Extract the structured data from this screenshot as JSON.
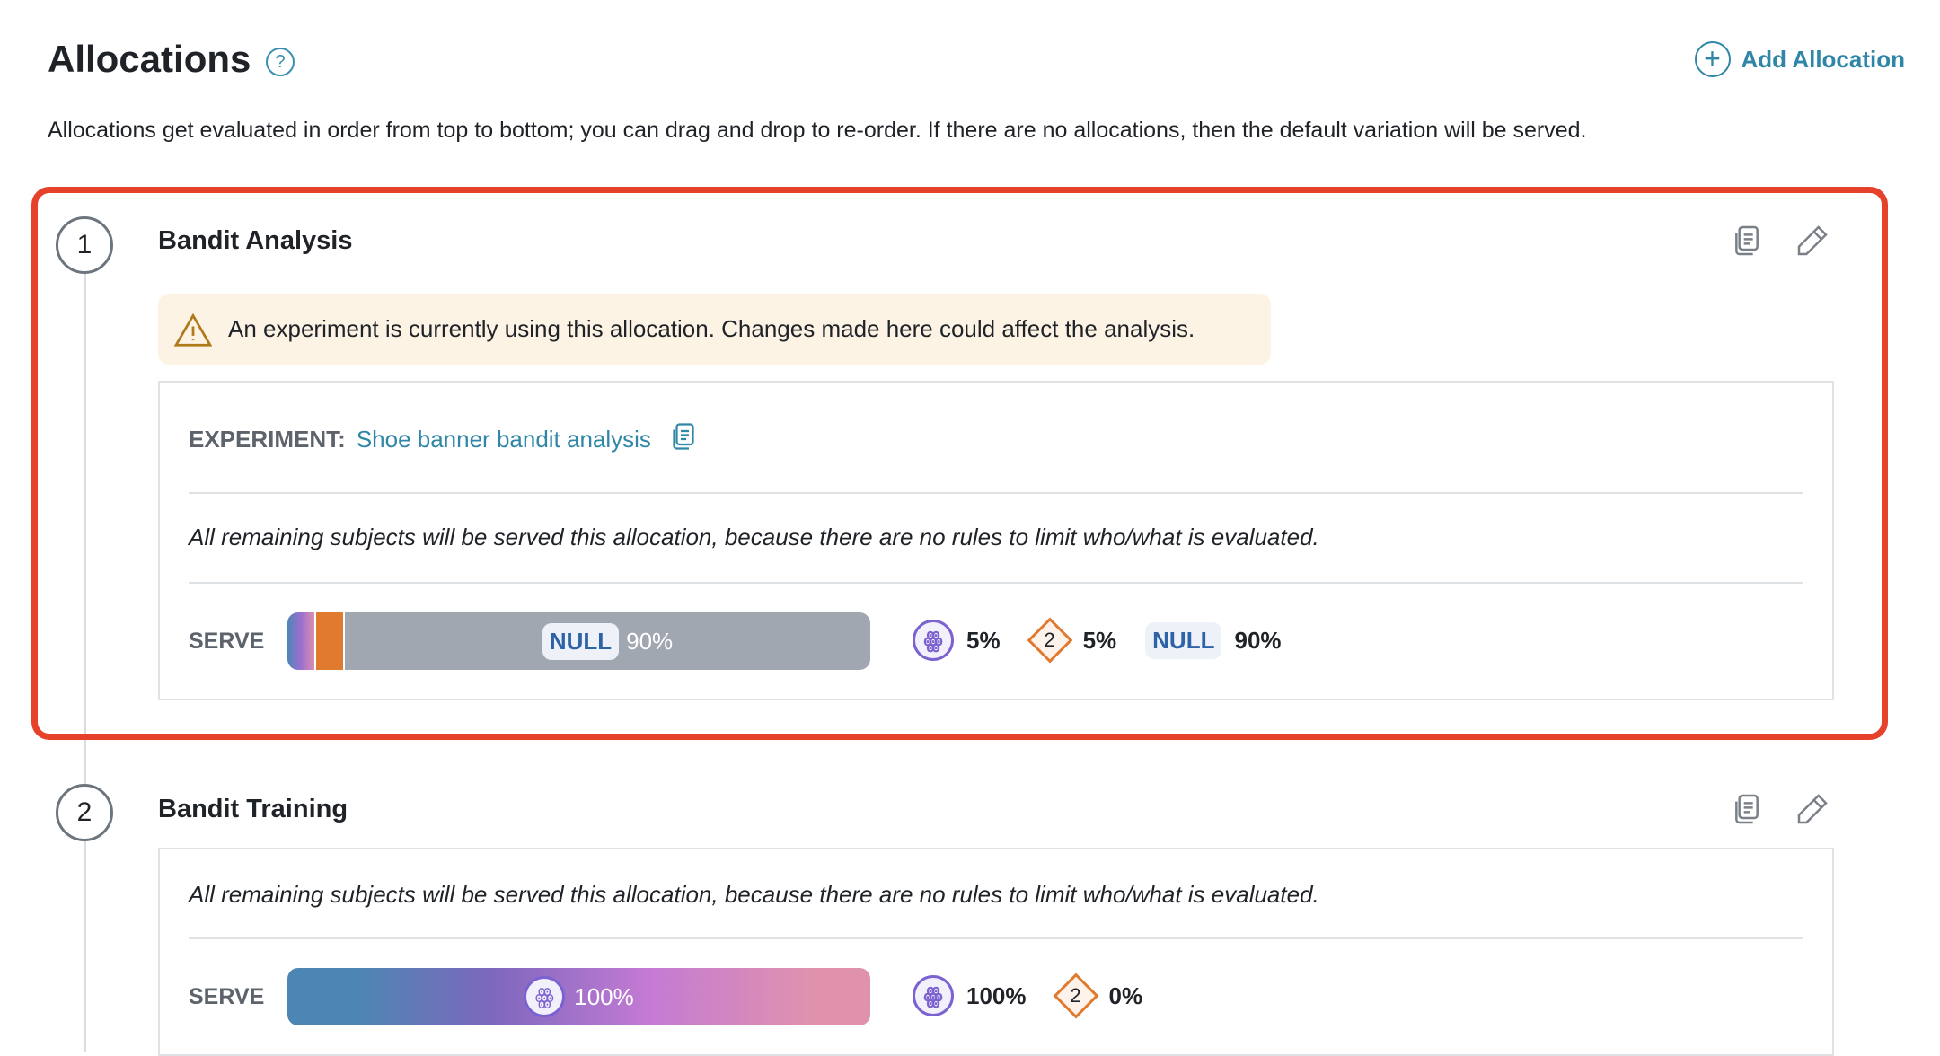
{
  "header": {
    "title": "Allocations",
    "help_icon": "question-circle-icon",
    "add_label": "Add Allocation",
    "description": "Allocations get evaluated in order from top to bottom; you can drag and drop to re-order. If there are no allocations, then the default variation will be served."
  },
  "colors": {
    "highlight": "#e5412b",
    "accent": "#2f86a6",
    "variation_2": "#e07a2f",
    "null_bar": "#a0a7b0"
  },
  "allocations": [
    {
      "index": "1",
      "title": "Bandit Analysis",
      "warning": "An experiment is currently using this allocation. Changes made here could affect the analysis.",
      "experiment_label": "EXPERIMENT:",
      "experiment_name": "Shoe banner bandit analysis",
      "rule_text": "All remaining subjects will be served this allocation, because there are no rules to limit who/what is evaluated.",
      "serve_label": "SERVE",
      "bar_label": "NULL",
      "bar_pct": "90%",
      "split": [
        {
          "variant": "octopus",
          "pct": "5%"
        },
        {
          "variant": "2",
          "pct": "5%"
        },
        {
          "variant": "NULL",
          "pct": "90%"
        }
      ]
    },
    {
      "index": "2",
      "title": "Bandit Training",
      "rule_text": "All remaining subjects will be served this allocation, because there are no rules to limit who/what is evaluated.",
      "serve_label": "SERVE",
      "bar_pct": "100%",
      "split": [
        {
          "variant": "octopus",
          "pct": "100%"
        },
        {
          "variant": "2",
          "pct": "0%"
        }
      ]
    }
  ]
}
